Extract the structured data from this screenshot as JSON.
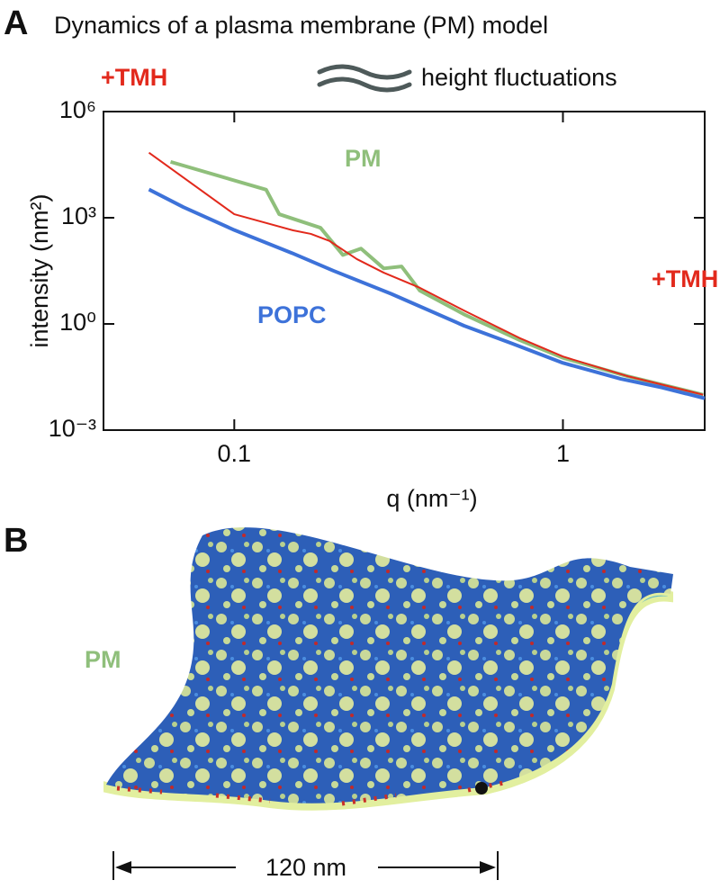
{
  "panel_a": {
    "label": "A"
  },
  "chart_data": {
    "type": "line",
    "title": "Dynamics of a plasma membrane (PM) model",
    "subtitle": "height fluctuations",
    "corner_label": "+TMH",
    "x_label": "q (nm⁻¹)",
    "y_label": "intensity (nm²)",
    "xscale": "log",
    "yscale": "log",
    "xlim": [
      0.04,
      2.7
    ],
    "ylim": [
      0.001,
      1000000
    ],
    "xticks": [
      0.1,
      1
    ],
    "yticks": [
      {
        "value": 0.001,
        "label": "10⁻³"
      },
      {
        "value": 1,
        "label": "10⁰"
      },
      {
        "value": 1000,
        "label": "10³"
      },
      {
        "value": 1000000,
        "label": "10⁶"
      }
    ],
    "series": [
      {
        "name": "PM",
        "color": "#8fbf7b",
        "width": 4,
        "x": [
          0.064,
          0.125,
          0.137,
          0.183,
          0.214,
          0.243,
          0.285,
          0.323,
          0.367,
          0.504,
          0.738,
          1,
          1.58,
          2.67
        ],
        "values": [
          38000,
          6200,
          1260,
          520,
          89,
          135,
          37,
          42,
          8.7,
          1.8,
          0.35,
          0.11,
          0.033,
          0.01
        ]
      },
      {
        "name": "+TMH",
        "color": "#e2291c",
        "width": 2,
        "x": [
          0.055,
          0.1,
          0.151,
          0.171,
          0.195,
          0.236,
          0.285,
          0.367,
          0.504,
          0.738,
          1,
          1.58,
          2.67
        ],
        "values": [
          69000,
          1260,
          440,
          350,
          220,
          68,
          28,
          10.5,
          2.3,
          0.4,
          0.12,
          0.033,
          0.01
        ]
      },
      {
        "name": "POPC",
        "color": "#3d72d9",
        "width": 4,
        "x": [
          0.055,
          0.07,
          0.1,
          0.15,
          0.2,
          0.3,
          0.5,
          0.7,
          1,
          1.5,
          2,
          2.7
        ],
        "values": [
          6300,
          2000,
          450,
          100,
          32,
          7.1,
          0.89,
          0.28,
          0.079,
          0.028,
          0.016,
          0.0079
        ]
      }
    ]
  },
  "panel_b": {
    "label": "B",
    "sheet_label": "PM",
    "scale_bar": "120 nm"
  }
}
